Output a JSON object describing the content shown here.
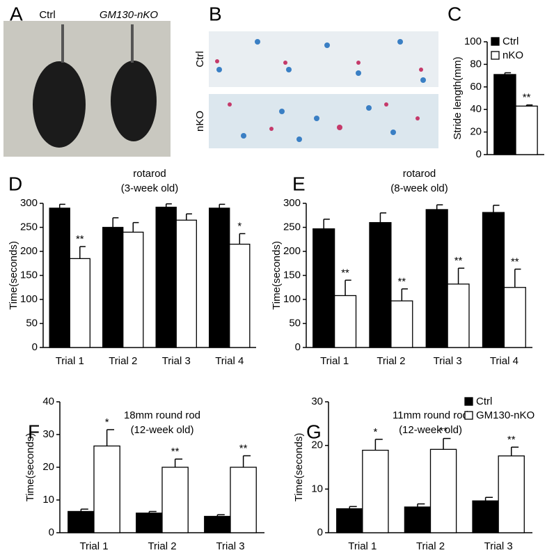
{
  "panel_labels": [
    "A",
    "B",
    "C",
    "D",
    "E",
    "F",
    "G"
  ],
  "photo_a": {
    "labels": [
      "Ctrl",
      "GM130-nKO"
    ]
  },
  "photo_b": {
    "labels": [
      "Ctrl",
      "nKO"
    ]
  },
  "chart_data": [
    {
      "type": "bar",
      "ylabel": "Stride length(mm)",
      "categories": [
        null
      ],
      "ylim": [
        0,
        100
      ],
      "yticks": [
        0,
        20,
        40,
        60,
        80,
        100
      ],
      "legend": true,
      "series": [
        {
          "name": "Ctrl",
          "color": "#000000",
          "values": [
            71
          ],
          "errors": [
            1.5
          ],
          "annotations": [
            null
          ]
        },
        {
          "name": "nKO",
          "color": "#ffffff",
          "values": [
            43
          ],
          "errors": [
            1
          ],
          "annotations": [
            "**"
          ]
        }
      ]
    },
    {
      "type": "bar",
      "title": "rotarod",
      "subtitle": "(3-week old)",
      "ylabel": "Time(seconds)",
      "categories": [
        "Trial 1",
        "Trial 2",
        "Trial 3",
        "Trial 4"
      ],
      "ylim": [
        0,
        300
      ],
      "yticks": [
        0,
        50,
        100,
        150,
        200,
        250,
        300
      ],
      "legend": false,
      "series": [
        {
          "color": "#000000",
          "values": [
            290,
            250,
            292,
            290
          ],
          "errors": [
            8,
            20,
            7,
            8
          ],
          "annotations": [
            null,
            null,
            null,
            null
          ]
        },
        {
          "color": "#ffffff",
          "values": [
            185,
            240,
            265,
            215
          ],
          "errors": [
            25,
            20,
            13,
            22
          ],
          "annotations": [
            "**",
            null,
            null,
            "*"
          ]
        }
      ]
    },
    {
      "type": "bar",
      "title": "rotarod",
      "subtitle": "(8-week old)",
      "ylabel": "Time(seconds)",
      "categories": [
        "Trial 1",
        "Trial 2",
        "Trial 3",
        "Trial 4"
      ],
      "ylim": [
        0,
        300
      ],
      "yticks": [
        0,
        50,
        100,
        150,
        200,
        250,
        300
      ],
      "legend": false,
      "series": [
        {
          "color": "#000000",
          "values": [
            247,
            260,
            287,
            281
          ],
          "errors": [
            20,
            20,
            10,
            15
          ],
          "annotations": [
            null,
            null,
            null,
            null
          ]
        },
        {
          "color": "#ffffff",
          "values": [
            108,
            97,
            132,
            125
          ],
          "errors": [
            32,
            25,
            33,
            38
          ],
          "annotations": [
            "**",
            "**",
            "**",
            "**"
          ]
        }
      ]
    },
    {
      "type": "bar",
      "title": "18mm round rod",
      "subtitle": "(12-week old)",
      "ylabel": "Time(seconds)",
      "categories": [
        "Trial 1",
        "Trial 2",
        "Trial 3"
      ],
      "ylim": [
        0,
        40
      ],
      "yticks": [
        0,
        10,
        20,
        30,
        40
      ],
      "legend": false,
      "series": [
        {
          "color": "#000000",
          "values": [
            6.5,
            6,
            5
          ],
          "errors": [
            0.7,
            0.5,
            0.5
          ],
          "annotations": [
            null,
            null,
            null
          ]
        },
        {
          "color": "#ffffff",
          "values": [
            26.5,
            20,
            20
          ],
          "errors": [
            5,
            2.5,
            3.5
          ],
          "annotations": [
            "*",
            "**",
            "**"
          ]
        }
      ]
    },
    {
      "type": "bar",
      "title": "11mm round rod",
      "subtitle": "(12-week old)",
      "ylabel": "Time(seconds)",
      "categories": [
        "Trial 1",
        "Trial 2",
        "Trial 3"
      ],
      "ylim": [
        0,
        30
      ],
      "yticks": [
        0,
        10,
        20,
        30
      ],
      "legend": true,
      "series": [
        {
          "name": "Ctrl",
          "color": "#000000",
          "values": [
            5.5,
            5.9,
            7.3
          ],
          "errors": [
            0.5,
            0.7,
            0.8
          ],
          "annotations": [
            null,
            null,
            null
          ]
        },
        {
          "name": "GM130-nKO",
          "color": "#ffffff",
          "values": [
            18.9,
            19.1,
            17.6
          ],
          "errors": [
            2.5,
            2.5,
            2
          ],
          "annotations": [
            "*",
            "**",
            "**"
          ]
        }
      ]
    }
  ]
}
